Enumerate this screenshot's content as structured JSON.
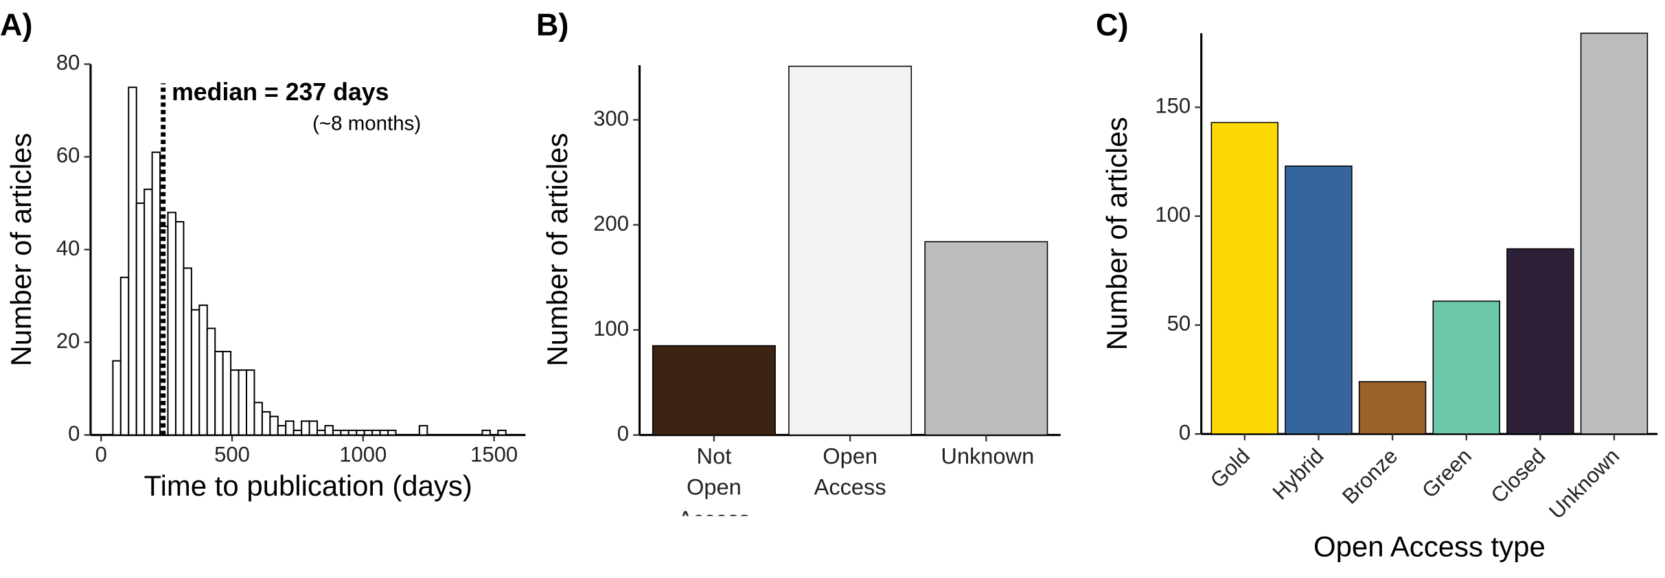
{
  "chart_data": [
    {
      "type": "histogram",
      "panel_label": "A)",
      "xlabel": "Time to publication (days)",
      "ylabel": "Number of articles",
      "bins": [
        45,
        75,
        105,
        135,
        165,
        195,
        225,
        255,
        285,
        315,
        345,
        375,
        405,
        435,
        465,
        495,
        525,
        555,
        585,
        615,
        645,
        675,
        705,
        735,
        765,
        795,
        825,
        855,
        885,
        915,
        945,
        975,
        1005,
        1035,
        1065,
        1095,
        1125,
        1155,
        1185,
        1215,
        1245,
        1275,
        1305,
        1335,
        1365,
        1395,
        1425,
        1455,
        1485,
        1515,
        1545,
        1575,
        1605
      ],
      "counts": [
        16,
        34,
        75,
        50,
        53,
        61,
        45,
        48,
        46,
        36,
        27,
        28,
        23,
        18,
        18,
        14,
        14,
        14,
        7,
        5,
        4,
        2,
        3,
        1,
        3,
        3,
        1,
        2,
        1,
        1,
        1,
        1,
        1,
        1,
        1,
        1,
        0,
        0,
        0,
        2,
        0,
        0,
        0,
        0,
        0,
        0,
        0,
        1,
        0,
        1,
        0,
        0
      ],
      "color": "#ffffff",
      "xlim": [
        -40,
        1620
      ],
      "ylim": [
        0,
        80
      ],
      "xticks": [
        0,
        500,
        1000,
        1500
      ],
      "yticks": [
        0,
        20,
        40,
        60,
        80
      ],
      "median": 237,
      "annotation": "median = 237 days",
      "annotation_sub": "(~8 months)"
    },
    {
      "type": "bar",
      "panel_label": "B)",
      "ylabel": "Number of articles",
      "categories": [
        "Not Open Access",
        "Open Access",
        "Unknown"
      ],
      "values": [
        85,
        351,
        184
      ],
      "colors": [
        "#3d2314",
        "#f2f2f2",
        "#bcbdbf"
      ],
      "ylim": [
        0,
        352
      ],
      "yticks": [
        0,
        100,
        200,
        300
      ]
    },
    {
      "type": "bar",
      "panel_label": "C)",
      "xlabel": "Open Access type",
      "ylabel": "Number of articles",
      "categories": [
        "Gold",
        "Hybrid",
        "Bronze",
        "Green",
        "Closed",
        "Unknown"
      ],
      "values": [
        143,
        123,
        24,
        61,
        85,
        184
      ],
      "colors": [
        "#fcd804",
        "#35659c",
        "#9c612a",
        "#6dc7aa",
        "#2e2039",
        "#bcbdbf"
      ],
      "ylim": [
        0,
        184
      ],
      "yticks": [
        0,
        50,
        100,
        150
      ],
      "rotate_labels": true
    }
  ]
}
